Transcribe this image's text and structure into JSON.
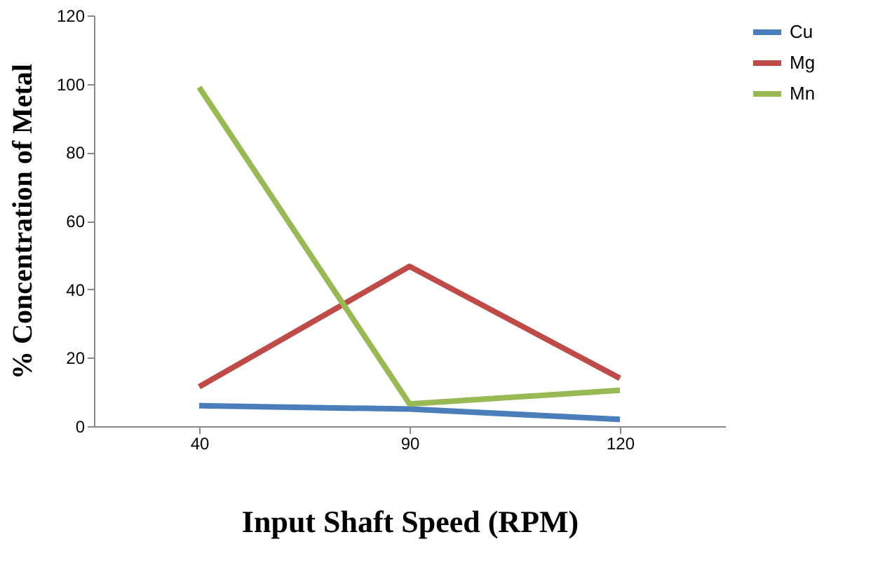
{
  "chart_data": {
    "type": "line",
    "xlabel": "Input Shaft Speed (RPM)",
    "ylabel": "% Concentration of Metal",
    "categories": [
      "40",
      "90",
      "120"
    ],
    "series": [
      {
        "name": "Cu",
        "color": "#4a7ebb",
        "values": [
          6,
          5,
          2
        ]
      },
      {
        "name": "Mg",
        "color": "#be4b48",
        "values": [
          11.5,
          46.7,
          14
        ]
      },
      {
        "name": "Mn",
        "color": "#98b954",
        "values": [
          99,
          6.5,
          10.5
        ]
      }
    ],
    "ylim": [
      0,
      120
    ],
    "yticks": [
      0,
      20,
      40,
      60,
      80,
      100,
      120
    ],
    "grid": false,
    "legend": "right",
    "marker": "none",
    "line_style": "solid"
  }
}
